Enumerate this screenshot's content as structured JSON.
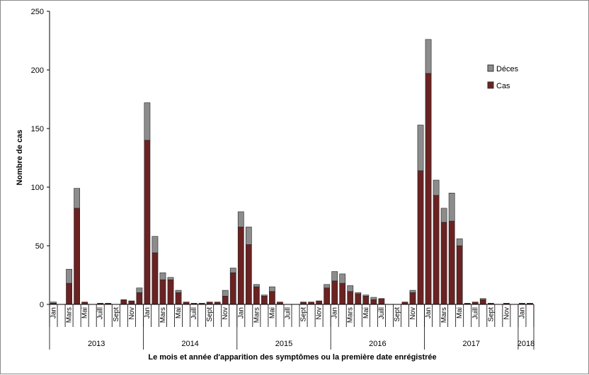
{
  "chart_data": {
    "type": "bar",
    "stacked": true,
    "title": "",
    "xlabel": "Le mois et année d'apparition des symptômes ou la première date enrégistrée",
    "ylabel": "Nombre de cas",
    "ylim": [
      0,
      250
    ],
    "yticks": [
      0,
      50,
      100,
      150,
      200,
      250
    ],
    "grid": false,
    "legend_position": "top-right",
    "colors": {
      "Cas": "#6b2222",
      "Déces": "#8c8c8c"
    },
    "year_labels": [
      "2013",
      "2014",
      "2015",
      "2016",
      "2017",
      "2018"
    ],
    "month_tick_labels": [
      "Jan",
      "Mars",
      "Mai",
      "Juill",
      "Sept",
      "Nov"
    ],
    "categories": [
      "2013-01",
      "2013-02",
      "2013-03",
      "2013-04",
      "2013-05",
      "2013-06",
      "2013-07",
      "2013-08",
      "2013-09",
      "2013-10",
      "2013-11",
      "2013-12",
      "2014-01",
      "2014-02",
      "2014-03",
      "2014-04",
      "2014-05",
      "2014-06",
      "2014-07",
      "2014-08",
      "2014-09",
      "2014-10",
      "2014-11",
      "2014-12",
      "2015-01",
      "2015-02",
      "2015-03",
      "2015-04",
      "2015-05",
      "2015-06",
      "2015-07",
      "2015-08",
      "2015-09",
      "2015-10",
      "2015-11",
      "2015-12",
      "2016-01",
      "2016-02",
      "2016-03",
      "2016-04",
      "2016-05",
      "2016-06",
      "2016-07",
      "2016-08",
      "2016-09",
      "2016-10",
      "2016-11",
      "2016-12",
      "2017-01",
      "2017-02",
      "2017-03",
      "2017-04",
      "2017-05",
      "2017-06",
      "2017-07",
      "2017-08",
      "2017-09",
      "2017-10",
      "2017-11",
      "2017-12",
      "2018-01",
      "2018-02"
    ],
    "series": [
      {
        "name": "Cas",
        "values": [
          1,
          0,
          18,
          82,
          2,
          0,
          1,
          1,
          0,
          4,
          3,
          10,
          140,
          44,
          21,
          21,
          10,
          2,
          1,
          1,
          2,
          2,
          7,
          27,
          66,
          51,
          15,
          7,
          11,
          2,
          0,
          0,
          2,
          2,
          3,
          14,
          20,
          18,
          11,
          9,
          7,
          4,
          5,
          0,
          0,
          2,
          10,
          114,
          197,
          93,
          70,
          71,
          50,
          1,
          2,
          4,
          1,
          0,
          1,
          0,
          1,
          1
        ]
      },
      {
        "name": "Déces",
        "values": [
          1,
          0,
          12,
          17,
          0,
          0,
          0,
          0,
          0,
          0,
          0,
          4,
          32,
          14,
          6,
          2,
          2,
          0,
          0,
          0,
          0,
          0,
          5,
          4,
          13,
          15,
          2,
          1,
          4,
          0,
          0,
          0,
          0,
          0,
          0,
          3,
          8,
          8,
          5,
          1,
          1,
          2,
          0,
          0,
          0,
          0,
          2,
          39,
          29,
          13,
          12,
          24,
          6,
          0,
          0,
          1,
          0,
          0,
          0,
          0,
          0,
          0
        ]
      }
    ]
  }
}
